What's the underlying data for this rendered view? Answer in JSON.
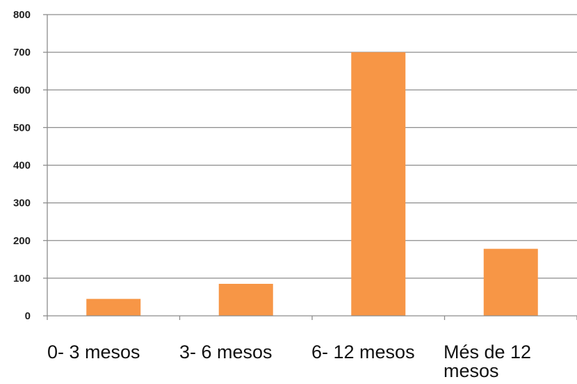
{
  "chart_data": {
    "type": "bar",
    "categories": [
      "0- 3 mesos",
      "3- 6 mesos",
      "6- 12 mesos",
      "Més de 12 mesos"
    ],
    "values": [
      45,
      85,
      700,
      178
    ],
    "ylim": [
      0,
      800
    ],
    "yticks": [
      0,
      100,
      200,
      300,
      400,
      500,
      600,
      700,
      800
    ],
    "grid": true,
    "legend": "none",
    "bar_color": "#F79646",
    "grid_color": "#8c8c8c",
    "title": "",
    "xlabel": "",
    "ylabel": ""
  }
}
